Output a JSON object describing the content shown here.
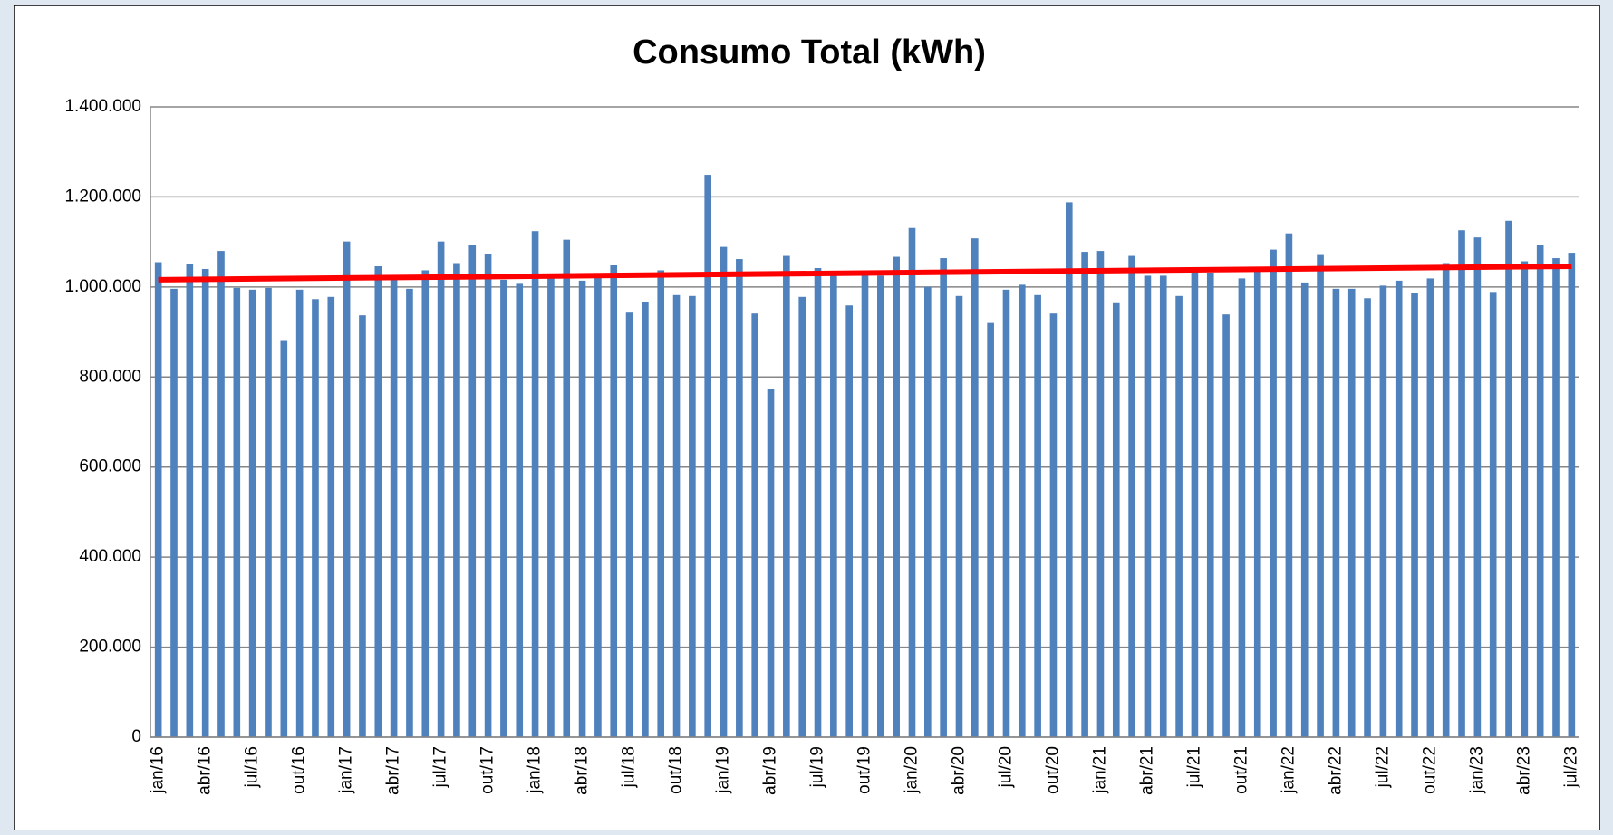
{
  "chart_data": {
    "type": "bar",
    "title": "Consumo Total (kWh)",
    "categories": [
      "jan/16",
      null,
      null,
      "abr/16",
      null,
      null,
      "jul/16",
      null,
      null,
      "out/16",
      null,
      null,
      "jan/17",
      null,
      null,
      "abr/17",
      null,
      null,
      "jul/17",
      null,
      null,
      "out/17",
      null,
      null,
      "jan/18",
      null,
      null,
      "abr/18",
      null,
      null,
      "jul/18",
      null,
      null,
      "out/18",
      null,
      null,
      "jan/19",
      null,
      null,
      "abr/19",
      null,
      null,
      "jul/19",
      null,
      null,
      "out/19",
      null,
      null,
      "jan/20",
      null,
      null,
      "abr/20",
      null,
      null,
      "jul/20",
      null,
      null,
      "out/20",
      null,
      null,
      "jan/21",
      null,
      null,
      "abr/21",
      null,
      null,
      "jul/21",
      null,
      null,
      "out/21",
      null,
      null,
      "jan/22",
      null,
      null,
      "abr/22",
      null,
      null,
      "jul/22",
      null,
      null,
      "out/22",
      null,
      null,
      "jan/23",
      null,
      null,
      "abr/23",
      null,
      null,
      "jul/23"
    ],
    "values": [
      1055000,
      996000,
      1052000,
      1040000,
      1080000,
      998000,
      994000,
      998000,
      882000,
      994000,
      973000,
      978000,
      1101000,
      937000,
      1046000,
      1021000,
      996000,
      1037000,
      1101000,
      1053000,
      1094000,
      1073000,
      1016000,
      1007000,
      1124000,
      1025000,
      1105000,
      1014000,
      1023000,
      1048000,
      943000,
      966000,
      1037000,
      982000,
      980000,
      1249000,
      1089000,
      1062000,
      941000,
      774000,
      1069000,
      978000,
      1042000,
      1025000,
      959000,
      1025000,
      1025000,
      1067000,
      1131000,
      1000000,
      1064000,
      980000,
      1108000,
      920000,
      994000,
      1005000,
      982000,
      941000,
      1188000,
      1078000,
      1080000,
      964000,
      1069000,
      1025000,
      1025000,
      980000,
      1037000,
      1032000,
      939000,
      1019000,
      1037000,
      1083000,
      1119000,
      1010000,
      1071000,
      996000,
      996000,
      975000,
      1003000,
      1014000,
      987000,
      1019000,
      1053000,
      1126000,
      1110000,
      989000,
      1147000,
      1057000,
      1094000,
      1064000,
      1076000
    ],
    "color": "#4f81bd",
    "trend": [
      1016000,
      1046000
    ],
    "trend_color": "#ff0000",
    "ylim": [
      0,
      1400000
    ],
    "yticks": [
      0,
      {
        "value": 200000,
        "label": "200.000"
      },
      {
        "value": 400000,
        "label": "400.000"
      },
      {
        "value": 600000,
        "label": "600.000"
      },
      {
        "value": 800000,
        "label": "800.000"
      },
      {
        "value": 1000000,
        "label": "1.000.000"
      },
      {
        "value": 1200000,
        "label": "1.200.000"
      },
      {
        "value": 1400000,
        "label": "1.400.000"
      }
    ],
    "grid": true
  }
}
